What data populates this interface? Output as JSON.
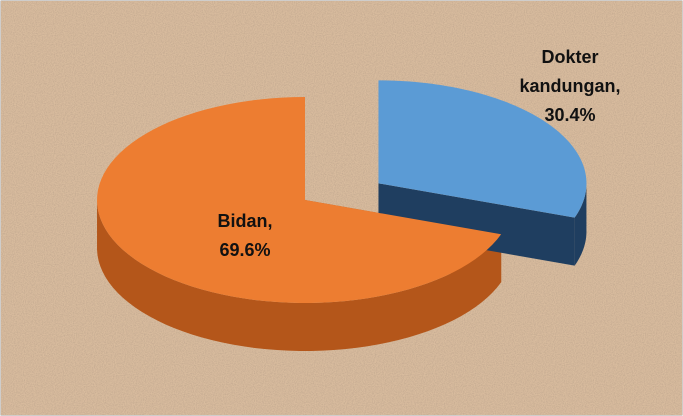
{
  "chart_data": {
    "type": "pie",
    "categories": [
      "Bidan,",
      "Dokter kandungan,"
    ],
    "values": [
      69.6,
      30.4
    ],
    "value_labels": [
      "69.6%",
      "30.4%"
    ],
    "colors": [
      "#ED7D31",
      "#5B9BD5"
    ],
    "side_colors": [
      "#B4561A",
      "#1F3E60"
    ]
  }
}
